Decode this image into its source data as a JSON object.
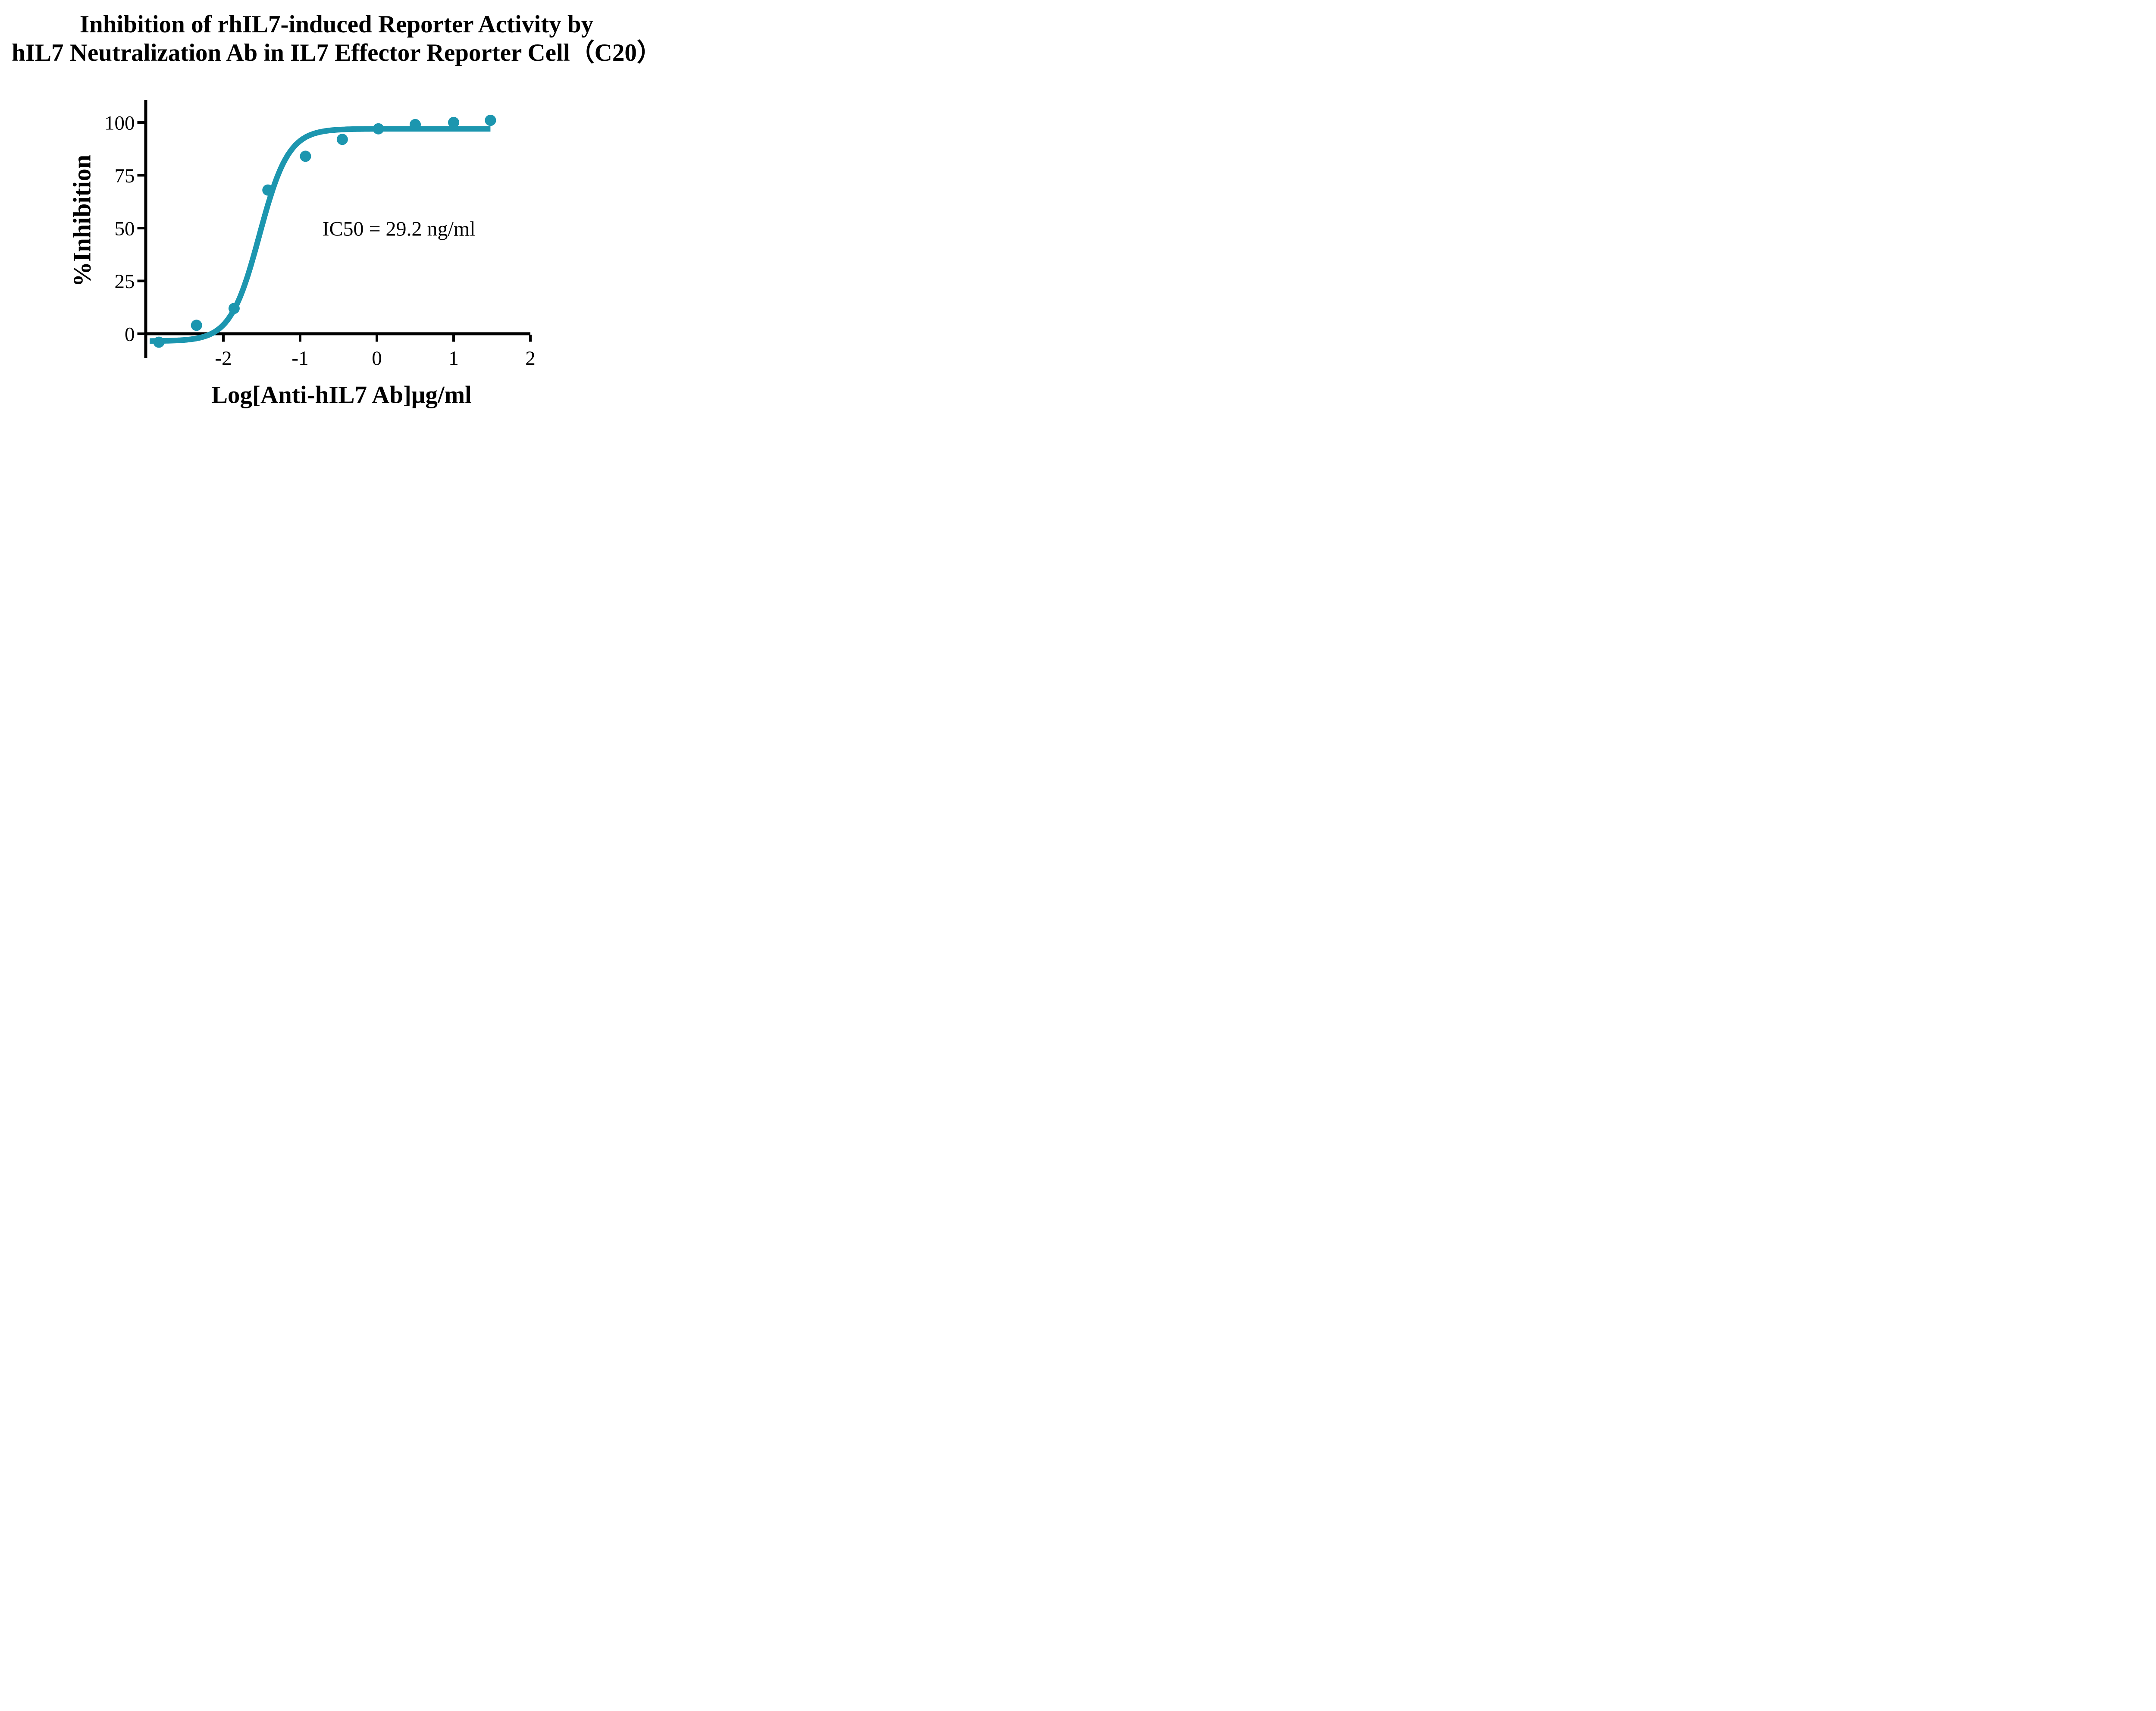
{
  "title": {
    "line1": "Inhibition of rhIL7-induced Reporter Activity by",
    "line2": "hIL7 Neutralization Ab in IL7 Effector Reporter Cell（C20）"
  },
  "annotation": {
    "ic50_label": "IC50 = 29.2 ng/ml"
  },
  "colors": {
    "curve": "#1C96AF",
    "points": "#1C96AF",
    "axis": "#000000",
    "background": "#FFFFFF",
    "text": "#000000"
  },
  "chart_data": {
    "type": "scatter",
    "title": "Inhibition of rhIL7-induced Reporter Activity by hIL7 Neutralization Ab in IL7 Effector Reporter Cell（C20）",
    "xlabel": "Log[Anti-hIL7 Ab]μg/ml",
    "ylabel": "%Inhibition",
    "x": [
      -2.84,
      -2.35,
      -1.86,
      -1.42,
      -0.93,
      -0.45,
      0.02,
      0.5,
      1.0,
      1.48
    ],
    "y": [
      -4,
      4,
      12,
      68,
      84,
      92,
      97,
      99,
      100,
      101
    ],
    "x_ticks": [
      -2,
      -1,
      0,
      1,
      2
    ],
    "y_ticks": [
      0,
      25,
      50,
      75,
      100
    ],
    "xlim": [
      -3,
      2
    ],
    "ylim": [
      -12,
      110
    ],
    "grid": false,
    "legend": false,
    "annotation": "IC50 = 29.2 ng/ml",
    "ic50_ng_ml": 29.2,
    "fit_curve": {
      "model": "four_parameter_logistic",
      "bottom": -3.5,
      "top": 97,
      "log_ic50": -1.53,
      "hill_slope": 2.3,
      "x_start": -2.96,
      "x_end": 1.48
    }
  }
}
